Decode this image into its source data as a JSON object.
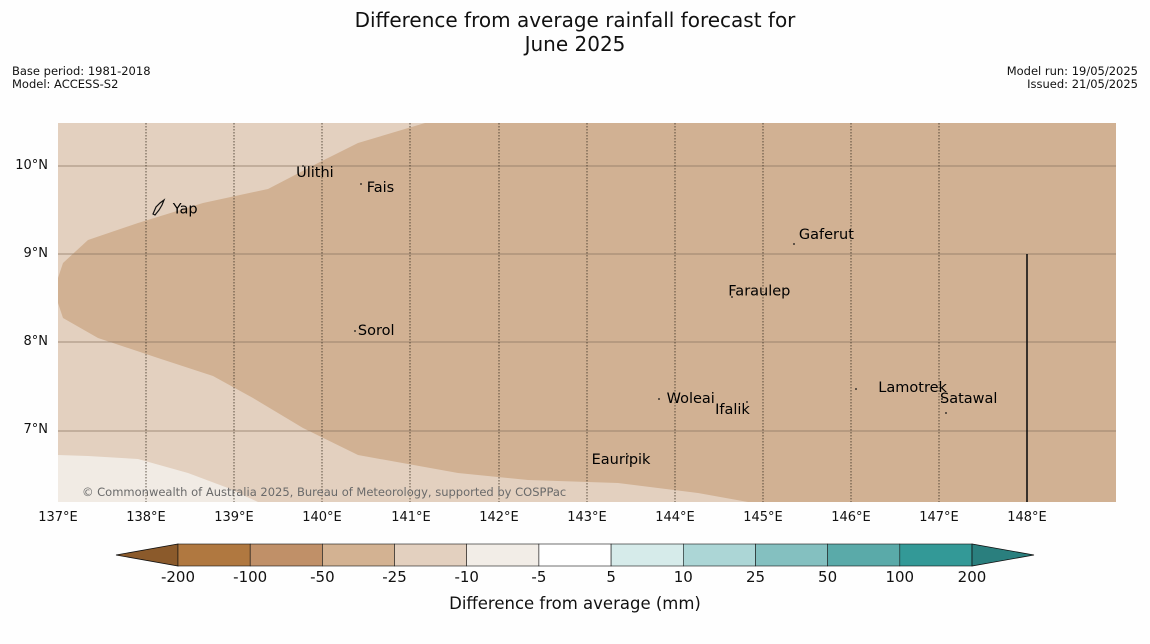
{
  "title": {
    "line1": "Difference from average rainfall forecast for",
    "line2": "June 2025"
  },
  "meta": {
    "base_period": "Base period: 1981-2018",
    "model": "Model: ACCESS-S2",
    "model_run": "Model run: 19/05/2025",
    "issued": "Issued: 21/05/2025"
  },
  "map": {
    "lat_labels": [
      "10°N",
      "9°N",
      "8°N",
      "7°N"
    ],
    "lon_labels": [
      "137°E",
      "138°E",
      "139°E",
      "140°E",
      "141°E",
      "142°E",
      "143°E",
      "144°E",
      "145°E",
      "146°E",
      "147°E",
      "148°E"
    ],
    "places": [
      {
        "name": "Yap",
        "lon": 138.3,
        "lat": 9.52
      },
      {
        "name": "Ulithi",
        "lon": 139.7,
        "lat": 9.93
      },
      {
        "name": "Fais",
        "lon": 140.5,
        "lat": 9.76
      },
      {
        "name": "Gaferut",
        "lon": 145.4,
        "lat": 9.23
      },
      {
        "name": "Faraulep",
        "lon": 144.6,
        "lat": 8.59
      },
      {
        "name": "Sorol",
        "lon": 140.4,
        "lat": 8.14
      },
      {
        "name": "Lamotrek",
        "lon": 146.3,
        "lat": 7.5
      },
      {
        "name": "Woleai",
        "lon": 143.9,
        "lat": 7.37
      },
      {
        "name": "Ifalik",
        "lon": 144.45,
        "lat": 7.25
      },
      {
        "name": "Satawal",
        "lon": 147.0,
        "lat": 7.37
      },
      {
        "name": "Eauripik",
        "lon": 143.05,
        "lat": 6.68
      }
    ],
    "copyright": "© Commonwealth of Australia 2025, Bureau of Meteorology, supported by COSPPac"
  },
  "colorbar": {
    "title": "Difference from average (mm)",
    "ticks": [
      "-200",
      "-100",
      "-50",
      "-25",
      "-10",
      "-5",
      "5",
      "10",
      "25",
      "50",
      "100",
      "200"
    ],
    "colors": [
      "#8b5a2b",
      "#b07840",
      "#c09068",
      "#d3b292",
      "#e3d0bf",
      "#f2ede7",
      "#ffffff",
      "#d6ebea",
      "#acd6d6",
      "#84c0c0",
      "#5aaaa9",
      "#339997",
      "#2a7f7e"
    ]
  }
}
